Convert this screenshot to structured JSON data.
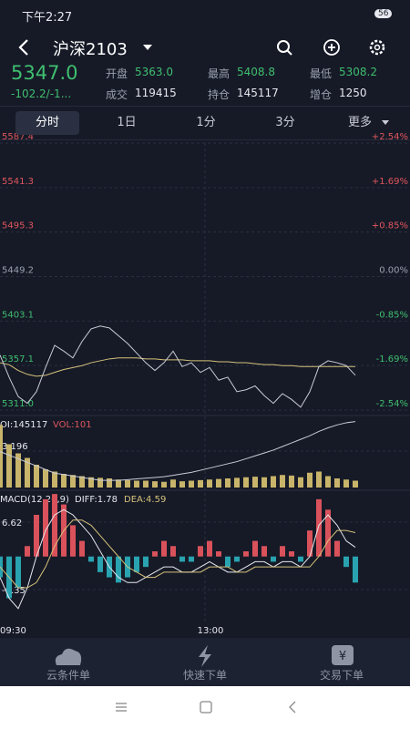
{
  "status": {
    "time": "下午2:27",
    "battery": "56"
  },
  "header": {
    "title": "沪深2103"
  },
  "quote": {
    "price": "5347.0",
    "change": "-102.2/-1...",
    "fields": [
      {
        "label": "开盘",
        "value": "5363.0"
      },
      {
        "label": "最高",
        "value": "5408.8"
      },
      {
        "label": "最低",
        "value": "5308.2"
      },
      {
        "label": "成交",
        "value": "119415"
      },
      {
        "label": "持仓",
        "value": "145117"
      },
      {
        "label": "增仓",
        "value": "1250"
      }
    ]
  },
  "tabs": [
    "分时",
    "1日",
    "1分",
    "3分",
    "更多"
  ],
  "price_chart": {
    "ylim": [
      5311,
      5587.4
    ],
    "yticks": [
      5587.4,
      5541.3,
      5495.3,
      5449.2,
      5403.1,
      5357.1,
      {
        "value": 5311,
        "label": "5311.0"
      }
    ],
    "pct_labels": [
      "+2.54%",
      "+1.69%",
      "+0.85%",
      "0.00%",
      "-0.85%",
      "-1.69%",
      "-2.54%"
    ],
    "price": [
      5368,
      5345,
      5325,
      5318,
      5330,
      5355,
      5378,
      5372,
      5365,
      5382,
      5395,
      5398,
      5396,
      5388,
      5380,
      5370,
      5360,
      5352,
      5360,
      5372,
      5356,
      5360,
      5350,
      5355,
      5342,
      5345,
      5330,
      5332,
      5336,
      5326,
      5318,
      5328,
      5322,
      5314,
      5330,
      5356,
      5362,
      5360,
      5357,
      5347
    ],
    "avg": [
      5360,
      5358,
      5352,
      5348,
      5346,
      5347,
      5350,
      5353,
      5355,
      5357,
      5360,
      5362,
      5364,
      5365,
      5365,
      5365,
      5364,
      5364,
      5363,
      5363,
      5363,
      5362,
      5362,
      5362,
      5361,
      5361,
      5360,
      5360,
      5359,
      5358,
      5358,
      5357,
      5357,
      5356,
      5356,
      5356,
      5356,
      5356,
      5356,
      5356
    ]
  },
  "volume_chart": {
    "oi_label": "OI:145117",
    "vol_label": "VOL:101",
    "ylim": [
      0,
      6000
    ],
    "yticks": [
      {
        "value": 3196,
        "label": "3,196"
      }
    ],
    "volume": [
      5500,
      3800,
      3000,
      2600,
      2000,
      1600,
      1400,
      1200,
      1100,
      1000,
      900,
      850,
      800,
      700,
      650,
      600,
      600,
      550,
      500,
      700,
      550,
      600,
      650,
      700,
      750,
      800,
      850,
      900,
      950,
      900,
      1000,
      1100,
      1050,
      900,
      1300,
      1400,
      1000,
      800,
      700,
      600
    ],
    "oilim": [
      144200,
      145150
    ],
    "oi": [
      144700,
      144650,
      144600,
      144550,
      144500,
      144450,
      144400,
      144380,
      144360,
      144340,
      144320,
      144300,
      144300,
      144300,
      144310,
      144320,
      144330,
      144340,
      144350,
      144370,
      144390,
      144410,
      144440,
      144470,
      144500,
      144530,
      144560,
      144600,
      144640,
      144680,
      144720,
      144770,
      144820,
      144870,
      144920,
      144980,
      145030,
      145070,
      145100,
      145117
    ]
  },
  "macd_chart": {
    "title": "MACD(12,26,9)",
    "diff_label": "DIFF:1.78",
    "dea_label": "DEA:4.59",
    "ylim": [
      -13,
      11.5
    ],
    "yticks": [
      6.62,
      -6.35
    ],
    "bars": [
      -4,
      -8,
      -6,
      2,
      8,
      11,
      12,
      10,
      6,
      3,
      -1,
      -3,
      -4,
      -5,
      -4,
      -3,
      -2,
      1,
      3,
      2,
      -1,
      -1,
      2,
      3,
      1,
      -2,
      -1,
      1,
      3,
      2,
      -1,
      2,
      1,
      -1,
      5,
      11,
      9,
      3,
      -2,
      -5
    ],
    "diff": [
      -4,
      -8,
      -10,
      -6,
      0,
      5,
      8,
      9,
      8,
      6,
      4,
      1,
      -2,
      -4,
      -5,
      -5,
      -4,
      -3,
      -2,
      -2,
      -3,
      -3,
      -2,
      -1,
      -2,
      -3,
      -3,
      -2,
      -1,
      -1,
      -2,
      -1,
      -1,
      -2,
      0,
      6,
      8,
      6,
      3,
      1.78
    ],
    "dea": [
      -2,
      -4,
      -6,
      -6,
      -5,
      -2,
      2,
      5,
      7,
      7,
      6,
      4,
      2,
      0,
      -2,
      -3,
      -4,
      -4,
      -3,
      -3,
      -3,
      -3,
      -3,
      -2,
      -2,
      -2,
      -3,
      -3,
      -2,
      -2,
      -2,
      -2,
      -2,
      -2,
      -2,
      0,
      3,
      5,
      5,
      4.59
    ]
  },
  "time_axis": [
    "09:30",
    "13:00"
  ],
  "bottom_nav": [
    "云条件单",
    "快速下单",
    "交易下单"
  ]
}
